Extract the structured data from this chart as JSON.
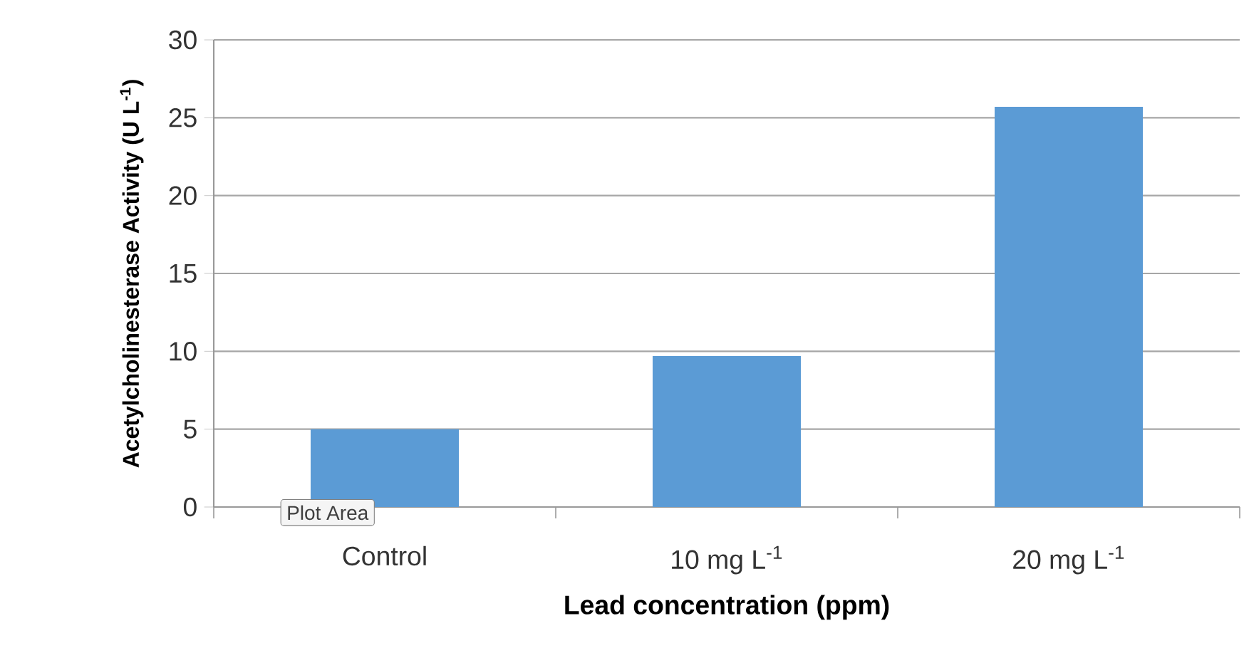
{
  "chart_data": {
    "type": "bar",
    "categories": [
      "Control",
      "10 mg L$^{-1}$",
      "20 mg L$^{-1}$"
    ],
    "values": [
      5.0,
      9.7,
      25.7
    ],
    "color": "#5b9bd5",
    "xlabel": "Lead concentration (ppm)",
    "ylabel": "Acetylcholinesterase Activity (U L$^{-1}$)",
    "ylim": [
      0,
      30
    ],
    "yticks": [
      0,
      5,
      10,
      15,
      20,
      25,
      30
    ],
    "grid": "y",
    "annotations": [
      "Plot Area"
    ]
  }
}
